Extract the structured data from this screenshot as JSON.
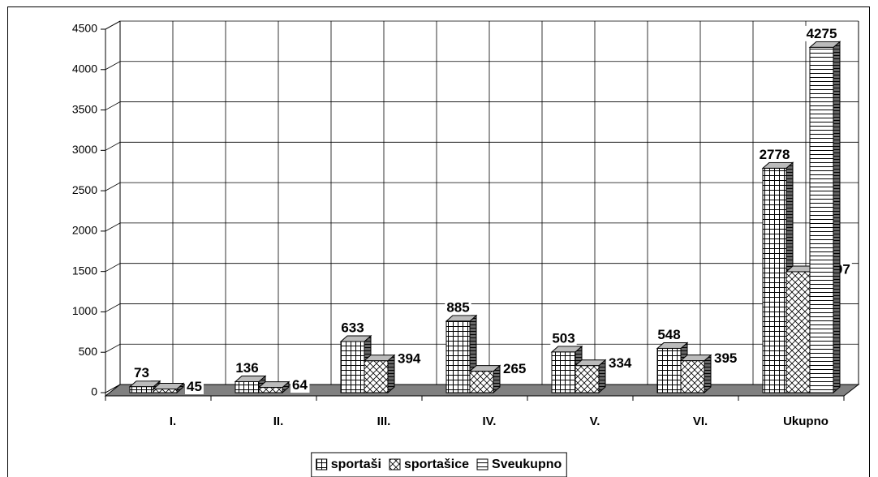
{
  "chart_data": {
    "type": "bar3d",
    "categories": [
      "I.",
      "II.",
      "III.",
      "IV.",
      "V.",
      "VI.",
      "Ukupno"
    ],
    "series": [
      {
        "name": "sportaši",
        "color": "#000000",
        "pattern": "grid",
        "values": [
          73,
          136,
          633,
          885,
          503,
          548,
          2778
        ]
      },
      {
        "name": "sportašice",
        "color": "#000000",
        "pattern": "diagonal",
        "values": [
          45,
          64,
          394,
          265,
          334,
          395,
          1497
        ]
      },
      {
        "name": "Sveukupno",
        "color": "#000000",
        "pattern": "horizontal",
        "values": [
          null,
          null,
          null,
          null,
          null,
          null,
          4275
        ]
      }
    ],
    "ylim": [
      0,
      4500
    ],
    "yticks": [
      0,
      500,
      1000,
      1500,
      2000,
      2500,
      3000,
      3500,
      4000,
      4500
    ],
    "grid": true,
    "legend": "bottom"
  }
}
